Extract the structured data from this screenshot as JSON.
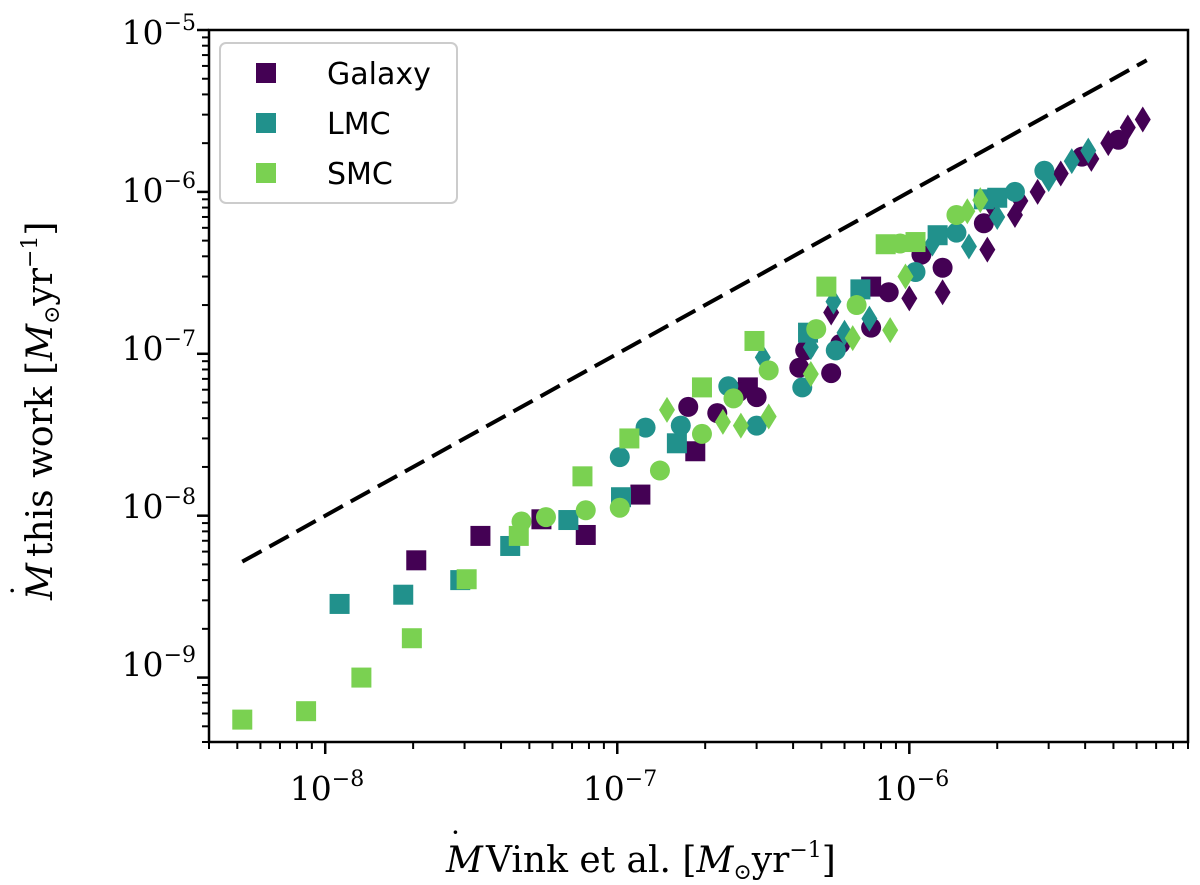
{
  "chart_data": {
    "type": "scatter",
    "xscale": "log",
    "yscale": "log",
    "xlim": [
      4e-09,
      9e-06
    ],
    "ylim": [
      4e-10,
      1e-05
    ],
    "xticks": [
      {
        "base": "10",
        "exp": "−8",
        "value": 1e-08
      },
      {
        "base": "10",
        "exp": "−7",
        "value": 1e-07
      },
      {
        "base": "10",
        "exp": "−6",
        "value": 1e-06
      }
    ],
    "yticks": [
      {
        "base": "10",
        "exp": "−9",
        "value": 1e-09
      },
      {
        "base": "10",
        "exp": "−8",
        "value": 1e-08
      },
      {
        "base": "10",
        "exp": "−7",
        "value": 1e-07
      },
      {
        "base": "10",
        "exp": "−6",
        "value": 1e-06
      },
      {
        "base": "10",
        "exp": "−5",
        "value": 1e-05
      }
    ],
    "xlabel": {
      "prefix": "Vink et al. [",
      "unit": "yr",
      "exp": "−1",
      "suffix": "]"
    },
    "ylabel": {
      "prefix": "this work [",
      "unit": "yr",
      "exp": "−1",
      "suffix": "]"
    },
    "reference_line": {
      "style": "dashed",
      "color": "#000000",
      "x": [
        5.2e-09,
        6.5e-06
      ],
      "y": [
        5.2e-09,
        6.5e-06
      ]
    },
    "legend": {
      "placement": "top-left"
    },
    "series": [
      {
        "name": "Galaxy",
        "color": "#440154",
        "squares": [
          [
            2.05e-08,
            5.3e-09
          ],
          [
            3.4e-08,
            7.5e-09
          ],
          [
            5.5e-08,
            9.5e-09
          ],
          [
            7.8e-08,
            7.6e-09
          ],
          [
            1.2e-07,
            1.35e-08
          ],
          [
            1.85e-07,
            2.5e-08
          ],
          [
            2.8e-07,
            6.2e-08
          ],
          [
            7.4e-07,
            2.6e-07
          ]
        ],
        "circles": [
          [
            1.75e-07,
            4.7e-08
          ],
          [
            2.2e-07,
            4.3e-08
          ],
          [
            2.6e-07,
            5.8e-08
          ],
          [
            3e-07,
            5.4e-08
          ],
          [
            4.2e-07,
            8.2e-08
          ],
          [
            4.4e-07,
            1.05e-07
          ],
          [
            5.4e-07,
            7.6e-08
          ],
          [
            5.8e-07,
            1.15e-07
          ],
          [
            7.4e-07,
            1.45e-07
          ],
          [
            8.5e-07,
            2.4e-07
          ],
          [
            1.1e-06,
            4.1e-07
          ],
          [
            1.3e-06,
            3.4e-07
          ],
          [
            1.8e-06,
            6.4e-07
          ],
          [
            3.9e-06,
            1.65e-06
          ],
          [
            5.2e-06,
            2.1e-06
          ]
        ],
        "diamonds": [
          [
            5.4e-07,
            1.8e-07
          ],
          [
            1e-06,
            2.2e-07
          ],
          [
            1.3e-06,
            2.4e-07
          ],
          [
            1.85e-06,
            4.4e-07
          ],
          [
            2.3e-06,
            7.2e-07
          ],
          [
            2.75e-06,
            1e-06
          ],
          [
            3.3e-06,
            1.3e-06
          ],
          [
            4.2e-06,
            1.6e-06
          ],
          [
            4.8e-06,
            2e-06
          ],
          [
            5.6e-06,
            2.5e-06
          ],
          [
            6.3e-06,
            2.8e-06
          ],
          [
            1.9e-06,
            8.4e-07
          ],
          [
            2.4e-06,
            8.8e-07
          ]
        ]
      },
      {
        "name": "LMC",
        "color": "#21918c",
        "squares": [
          [
            1.12e-08,
            2.85e-09
          ],
          [
            1.85e-08,
            3.25e-09
          ],
          [
            2.9e-08,
            4e-09
          ],
          [
            4.3e-08,
            6.5e-09
          ],
          [
            6.8e-08,
            9.4e-09
          ],
          [
            1.03e-07,
            1.3e-08
          ],
          [
            1.6e-07,
            2.8e-08
          ],
          [
            4.5e-07,
            1.35e-07
          ],
          [
            6.8e-07,
            2.5e-07
          ],
          [
            1.8e-06,
            9e-07
          ],
          [
            2e-06,
            9.2e-07
          ],
          [
            1.25e-06,
            5.4e-07
          ]
        ],
        "circles": [
          [
            1.02e-07,
            2.3e-08
          ],
          [
            1.25e-07,
            3.5e-08
          ],
          [
            1.65e-07,
            3.6e-08
          ],
          [
            2.4e-07,
            6.3e-08
          ],
          [
            3e-07,
            3.6e-08
          ],
          [
            4.3e-07,
            6.2e-08
          ],
          [
            5.6e-07,
            1.05e-07
          ],
          [
            1.05e-06,
            3.2e-07
          ],
          [
            1.45e-06,
            5.6e-07
          ],
          [
            2.3e-06,
            1e-06
          ],
          [
            2.9e-06,
            1.35e-06
          ]
        ],
        "diamonds": [
          [
            3.15e-07,
            9.5e-08
          ],
          [
            4.6e-07,
            1.1e-07
          ],
          [
            5.5e-07,
            2.1e-07
          ],
          [
            6e-07,
            1.35e-07
          ],
          [
            7.3e-07,
            1.65e-07
          ],
          [
            1.2e-06,
            4.8e-07
          ],
          [
            1.6e-06,
            4.6e-07
          ],
          [
            2e-06,
            7e-07
          ],
          [
            3e-06,
            1.2e-06
          ],
          [
            3.6e-06,
            1.55e-06
          ],
          [
            4.1e-06,
            1.8e-06
          ]
        ]
      },
      {
        "name": "SMC",
        "color": "#7ad151",
        "squares": [
          [
            5.2e-09,
            5.5e-10
          ],
          [
            8.6e-09,
            6.2e-10
          ],
          [
            1.33e-08,
            1e-09
          ],
          [
            1.98e-08,
            1.75e-09
          ],
          [
            3.05e-08,
            4.05e-09
          ],
          [
            4.6e-08,
            7.5e-09
          ],
          [
            7.6e-08,
            1.75e-08
          ],
          [
            1.1e-07,
            3e-08
          ],
          [
            1.95e-07,
            6.2e-08
          ],
          [
            2.95e-07,
            1.2e-07
          ],
          [
            5.2e-07,
            2.6e-07
          ],
          [
            8.3e-07,
            4.75e-07
          ],
          [
            1.05e-06,
            4.9e-07
          ]
        ],
        "circles": [
          [
            4.7e-08,
            9.2e-09
          ],
          [
            5.7e-08,
            9.8e-09
          ],
          [
            7.8e-08,
            1.08e-08
          ],
          [
            1.02e-07,
            1.12e-08
          ],
          [
            1.4e-07,
            1.9e-08
          ],
          [
            1.95e-07,
            3.2e-08
          ],
          [
            2.5e-07,
            5.3e-08
          ],
          [
            3.3e-07,
            7.9e-08
          ],
          [
            4.8e-07,
            1.42e-07
          ],
          [
            6.6e-07,
            2e-07
          ],
          [
            9.3e-07,
            4.8e-07
          ],
          [
            1.45e-06,
            7.2e-07
          ]
        ],
        "diamonds": [
          [
            1.48e-07,
            4.5e-08
          ],
          [
            2.3e-07,
            3.8e-08
          ],
          [
            2.65e-07,
            3.6e-08
          ],
          [
            3.3e-07,
            4.1e-08
          ],
          [
            4.6e-07,
            7.5e-08
          ],
          [
            6.4e-07,
            1.25e-07
          ],
          [
            8.6e-07,
            1.4e-07
          ],
          [
            9.7e-07,
            3e-07
          ],
          [
            1.58e-06,
            7.6e-07
          ],
          [
            1.75e-06,
            8.9e-07
          ]
        ]
      }
    ]
  }
}
